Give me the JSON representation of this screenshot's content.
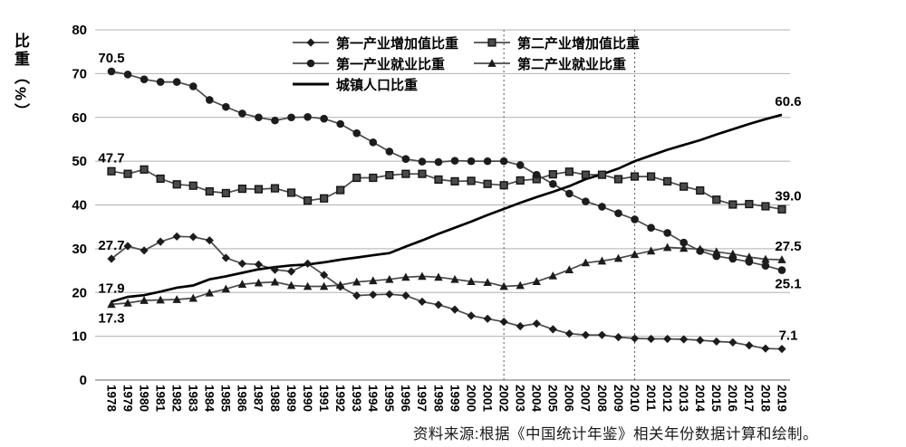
{
  "chart_data": {
    "type": "line",
    "title": "",
    "ylabel": "比重（%）",
    "ylim": [
      0,
      80
    ],
    "yticks": [
      0,
      10,
      20,
      30,
      40,
      50,
      60,
      70,
      80
    ],
    "grid": true,
    "legend_position": "top-center",
    "x": [
      1978,
      1979,
      1980,
      1981,
      1982,
      1983,
      1984,
      1985,
      1986,
      1987,
      1988,
      1989,
      1990,
      1991,
      1992,
      1993,
      1994,
      1995,
      1996,
      1997,
      1998,
      1999,
      2000,
      2001,
      2002,
      2003,
      2004,
      2005,
      2006,
      2007,
      2008,
      2009,
      2010,
      2011,
      2012,
      2013,
      2014,
      2015,
      2016,
      2017,
      2018,
      2019
    ],
    "vlines": [
      2002,
      2010
    ],
    "series": [
      {
        "name": "第一产业增加值比重",
        "marker": "diamond",
        "values": [
          27.7,
          30.6,
          29.6,
          31.6,
          32.8,
          32.7,
          31.9,
          27.9,
          26.6,
          26.4,
          25.2,
          24.8,
          26.6,
          24.0,
          21.3,
          19.3,
          19.5,
          19.6,
          19.3,
          17.9,
          17.2,
          16.1,
          14.7,
          14.0,
          13.3,
          12.3,
          12.9,
          11.6,
          10.6,
          10.3,
          10.3,
          9.8,
          9.5,
          9.4,
          9.4,
          9.3,
          9.1,
          8.8,
          8.6,
          7.9,
          7.2,
          7.1
        ]
      },
      {
        "name": "第二产业增加值比重",
        "marker": "square",
        "values": [
          47.7,
          47.1,
          48.1,
          46.0,
          44.7,
          44.4,
          43.1,
          42.7,
          43.7,
          43.6,
          43.8,
          42.8,
          41.0,
          41.5,
          43.4,
          46.2,
          46.2,
          46.8,
          47.1,
          47.1,
          45.8,
          45.4,
          45.5,
          44.8,
          44.5,
          45.6,
          45.9,
          47.0,
          47.6,
          46.9,
          46.9,
          45.9,
          46.5,
          46.5,
          45.4,
          44.2,
          43.3,
          41.2,
          40.1,
          40.2,
          39.7,
          39.0
        ]
      },
      {
        "name": "第一产业就业比重",
        "marker": "circle",
        "values": [
          70.5,
          69.8,
          68.7,
          68.1,
          68.1,
          67.1,
          64.0,
          62.4,
          60.9,
          60.0,
          59.3,
          60.0,
          60.1,
          59.7,
          58.5,
          56.4,
          54.3,
          52.2,
          50.5,
          49.9,
          49.8,
          50.1,
          50.0,
          50.0,
          50.0,
          49.1,
          46.9,
          44.8,
          42.6,
          40.8,
          39.6,
          38.1,
          36.7,
          34.8,
          33.6,
          31.4,
          29.5,
          28.3,
          27.7,
          27.0,
          26.1,
          25.1
        ]
      },
      {
        "name": "第二产业就业比重",
        "marker": "triangle",
        "values": [
          17.3,
          17.6,
          18.2,
          18.3,
          18.4,
          18.7,
          19.9,
          20.8,
          21.9,
          22.2,
          22.4,
          21.6,
          21.4,
          21.4,
          21.7,
          22.4,
          22.7,
          23.0,
          23.5,
          23.7,
          23.5,
          23.0,
          22.5,
          22.3,
          21.4,
          21.6,
          22.5,
          23.8,
          25.2,
          26.8,
          27.2,
          27.8,
          28.7,
          29.5,
          30.3,
          30.1,
          29.9,
          29.3,
          28.8,
          28.1,
          27.6,
          27.5
        ]
      },
      {
        "name": "城镇人口比重",
        "marker": "none",
        "values": [
          17.9,
          19.0,
          19.4,
          20.2,
          21.1,
          21.6,
          23.0,
          23.7,
          24.5,
          25.3,
          25.8,
          26.2,
          26.4,
          26.9,
          27.5,
          28.0,
          28.5,
          29.0,
          30.5,
          31.9,
          33.4,
          34.8,
          36.2,
          37.7,
          39.1,
          40.5,
          41.8,
          43.0,
          44.3,
          45.9,
          47.0,
          48.3,
          50.0,
          51.3,
          52.6,
          53.7,
          54.8,
          56.1,
          57.3,
          58.5,
          59.6,
          60.6
        ]
      }
    ],
    "annotations": [
      {
        "text": "70.5",
        "year": 1978,
        "value": 70.5,
        "pos": "above",
        "dx": 0
      },
      {
        "text": "47.7",
        "year": 1978,
        "value": 47.7,
        "pos": "above",
        "dx": 0
      },
      {
        "text": "27.7",
        "year": 1978,
        "value": 27.7,
        "pos": "above",
        "dx": 0
      },
      {
        "text": "17.9",
        "year": 1978,
        "value": 17.9,
        "pos": "above",
        "dx": 0
      },
      {
        "text": "17.3",
        "year": 1978,
        "value": 17.3,
        "pos": "below",
        "dx": 0
      },
      {
        "text": "60.6",
        "year": 2019,
        "value": 60.6,
        "pos": "above",
        "dx": 7
      },
      {
        "text": "39.0",
        "year": 2019,
        "value": 39.0,
        "pos": "above",
        "dx": 7
      },
      {
        "text": "27.5",
        "year": 2019,
        "value": 27.5,
        "pos": "above",
        "dx": 7
      },
      {
        "text": "25.1",
        "year": 2019,
        "value": 25.1,
        "pos": "below",
        "dx": 7
      },
      {
        "text": "7.1",
        "year": 2019,
        "value": 7.1,
        "pos": "above",
        "dx": 7
      }
    ]
  },
  "source_note": "资料来源:根据《中国统计年鉴》相关年份数据计算和绘制。",
  "colors": {
    "series_line": "#4a4a4a",
    "marker": "#1c1c1c",
    "square_fill": "#4a4a4a",
    "bold_line": "#000000",
    "grid": "#b0b0b0",
    "axis": "#9a9a9a",
    "vline": "#555555",
    "text": "#000000"
  }
}
